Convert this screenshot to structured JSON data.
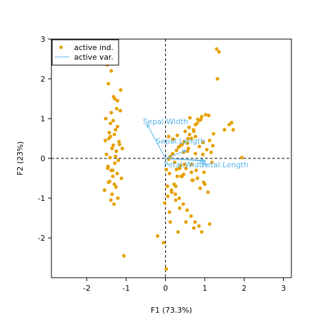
{
  "chart_data": {
    "type": "scatter",
    "title": "",
    "xlabel": "F1 (73.3%)",
    "ylabel": "F2 (23%)",
    "xlim": [
      -2.9,
      3.2
    ],
    "ylim": [
      -3.0,
      3.0
    ],
    "xticks": [
      -2,
      -1,
      0,
      1,
      2,
      3
    ],
    "yticks": [
      -2,
      -1,
      0,
      1,
      2,
      3
    ],
    "grid": false,
    "legend_position": "top-left",
    "legend": [
      {
        "label": "active ind.",
        "kind": "point",
        "color": "#E69F00"
      },
      {
        "label": "active var.",
        "kind": "line",
        "color": "#56B4E9"
      }
    ],
    "variables": {
      "color": "#56B4E9",
      "items": [
        {
          "name": "Sepal.Width",
          "x": -0.47,
          "y": 0.86
        },
        {
          "name": "Sepal.Length",
          "x": 0.52,
          "y": 0.2
        },
        {
          "name": "Petal.Width",
          "x": 0.97,
          "y": -0.05
        },
        {
          "name": "Petal.Length",
          "x": 1.02,
          "y": -0.07
        }
      ]
    },
    "series": [
      {
        "name": "active ind.",
        "color": "#E69F00",
        "x": [
          -1.35,
          -1.28,
          -1.48,
          -1.38,
          -1.45,
          -1.32,
          -1.22,
          -1.15,
          -1.52,
          -1.4,
          -1.27,
          -1.3,
          -1.44,
          -1.18,
          -1.33,
          -1.36,
          -1.25,
          -1.5,
          -1.41,
          -1.2,
          -1.29,
          -1.46,
          -1.38,
          -1.23,
          -1.34,
          -1.12,
          -1.42,
          -1.3,
          -1.26,
          -1.55,
          -1.36,
          -1.21,
          -1.39,
          -1.31,
          -1.47,
          -1.27,
          -1.17,
          -1.43,
          -1.33,
          -1.24,
          -1.38,
          -1.29,
          -1.1,
          -1.45,
          -1.34,
          -1.22,
          -1.4,
          -1.53,
          -1.06,
          -1.14,
          0.08,
          0.12,
          0.18,
          0.23,
          0.28,
          0.33,
          0.38,
          0.42,
          0.47,
          0.52,
          0.57,
          0.61,
          0.66,
          0.71,
          0.76,
          0.81,
          0.86,
          0.92,
          0.97,
          0.05,
          0.15,
          0.25,
          0.35,
          0.45,
          0.55,
          0.65,
          0.75,
          0.85,
          0.95,
          1.05,
          0.02,
          0.1,
          0.2,
          0.3,
          0.4,
          0.5,
          0.6,
          0.7,
          0.8,
          0.9,
          1.0,
          1.1,
          1.2,
          0.16,
          0.26,
          0.36,
          0.46,
          0.56,
          0.66,
          0.76,
          -0.2,
          -0.05,
          0.02,
          0.12,
          0.32,
          0.52,
          0.72,
          0.92,
          1.12,
          1.32,
          1.36,
          1.3,
          1.5,
          1.62,
          1.68,
          1.72,
          1.94,
          1.12,
          1.22,
          0.62,
          0.82,
          1.02,
          0.42,
          0.22,
          0.68,
          0.88,
          1.08,
          0.48,
          0.28,
          0.78,
          0.98,
          1.18,
          0.58,
          0.38,
          0.18,
          0.08,
          0.72,
          0.56,
          0.36,
          0.96,
          0.76,
          1.16,
          0.86,
          0.66,
          0.46,
          0.26,
          0.06,
          -0.02,
          0.1,
          0.3
        ],
        "y": [
          2.75,
          2.55,
          2.35,
          2.2,
          1.88,
          1.55,
          1.45,
          1.2,
          1.0,
          0.88,
          0.72,
          0.6,
          0.5,
          0.42,
          0.33,
          0.25,
          0.18,
          0.1,
          0.02,
          -0.05,
          -0.12,
          -0.2,
          -0.3,
          -0.38,
          -0.45,
          -0.5,
          -0.58,
          -0.65,
          -0.72,
          -0.8,
          -0.9,
          -1.0,
          -1.05,
          -1.15,
          -0.25,
          0.05,
          0.35,
          0.65,
          0.95,
          1.25,
          1.15,
          1.5,
          0.25,
          -0.6,
          -0.3,
          0.8,
          0.55,
          0.45,
          -2.45,
          1.72,
          -0.02,
          0.05,
          0.12,
          -0.1,
          0.2,
          0.28,
          -0.18,
          0.35,
          0.42,
          -0.25,
          0.5,
          0.6,
          -0.35,
          0.72,
          0.85,
          -0.5,
          0.95,
          1.05,
          -0.6,
          -0.7,
          -0.8,
          -0.9,
          -1.0,
          -1.15,
          -1.3,
          -1.45,
          -1.6,
          -1.7,
          0.1,
          0.22,
          -0.28,
          -0.38,
          0.48,
          0.58,
          -0.45,
          0.68,
          0.78,
          -0.55,
          0.88,
          0.98,
          -0.65,
          1.08,
          0.32,
          -0.85,
          -1.05,
          -1.25,
          0.15,
          0.38,
          -0.15,
          0.55,
          -1.95,
          -2.12,
          -2.78,
          -1.6,
          -1.85,
          -1.6,
          -1.75,
          -1.85,
          -1.65,
          2.0,
          2.68,
          2.75,
          0.72,
          0.85,
          0.9,
          0.72,
          0.02,
          0.45,
          0.62,
          1.02,
          0.98,
          1.1,
          -0.45,
          -0.65,
          -0.55,
          -0.75,
          -0.85,
          -0.15,
          -0.28,
          -0.3,
          -0.35,
          -0.1,
          0.25,
          0.32,
          0.48,
          0.55,
          0.68,
          0.18,
          -0.25,
          0.4,
          0.12,
          0.15,
          0.3,
          0.5,
          -0.4,
          -0.7,
          -0.95,
          -1.12,
          -1.35,
          -0.45
        ]
      }
    ]
  }
}
